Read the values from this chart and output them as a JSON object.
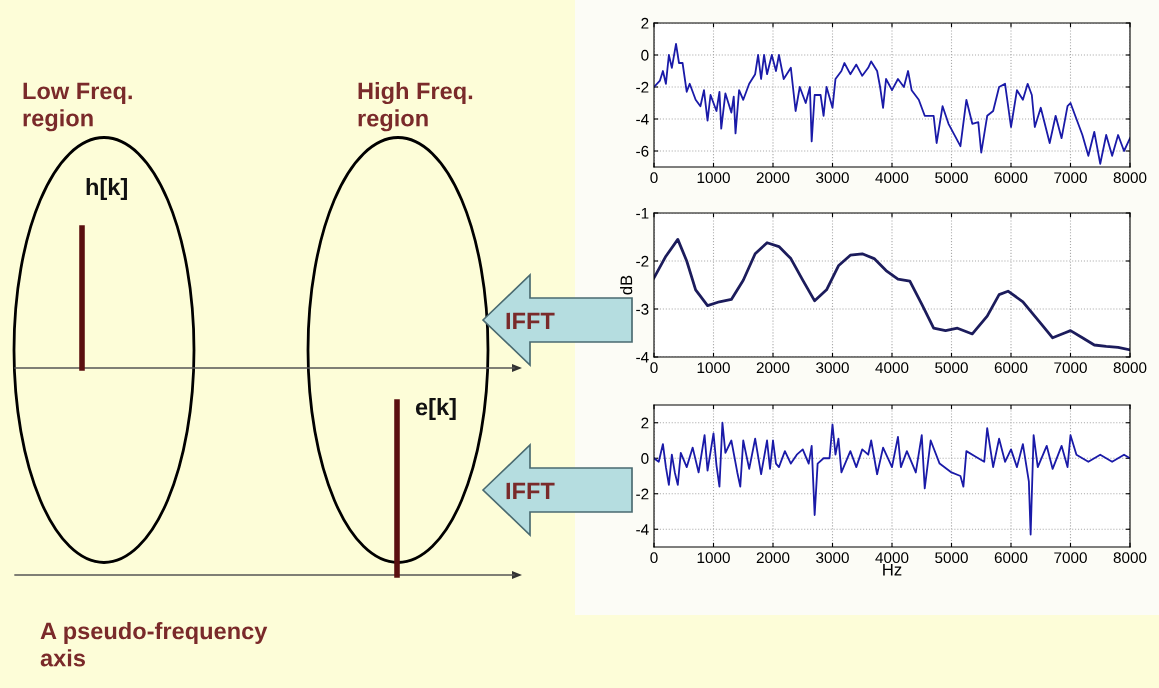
{
  "chart_data": [
    {
      "type": "other",
      "annotations": [
        "Low Freq.\nregion",
        "High Freq.\nregion",
        "h[k]",
        "e[k]",
        "IFFT",
        "IFFT",
        "A pseudo-frequency\naxis"
      ]
    },
    {
      "type": "line",
      "xlim": [
        0,
        8000
      ],
      "xticks": [
        0,
        1000,
        2000,
        3000,
        4000,
        5000,
        6000,
        7000,
        8000
      ],
      "ylim": [
        -7,
        2
      ],
      "yticks": [
        -6,
        -4,
        -2,
        0,
        2
      ],
      "grid": true,
      "line_style": "solid",
      "marker": "none",
      "series": [
        {
          "color": "#1a1aa8",
          "x": [
            0,
            100,
            150,
            200,
            250,
            300,
            370,
            420,
            480,
            550,
            600,
            700,
            780,
            840,
            900,
            950,
            1050,
            1100,
            1130,
            1200,
            1300,
            1340,
            1370,
            1430,
            1500,
            1600,
            1700,
            1750,
            1800,
            1850,
            1900,
            1980,
            2050,
            2100,
            2180,
            2300,
            2380,
            2450,
            2550,
            2620,
            2650,
            2700,
            2800,
            2850,
            2900,
            3000,
            3050,
            3150,
            3200,
            3300,
            3400,
            3500,
            3600,
            3650,
            3750,
            3800,
            3850,
            3900,
            4000,
            4100,
            4200,
            4270,
            4330,
            4450,
            4550,
            4700,
            4750,
            4850,
            4950,
            5150,
            5250,
            5350,
            5450,
            5500,
            5600,
            5700,
            5800,
            5900,
            6000,
            6100,
            6200,
            6280,
            6350,
            6400,
            6500,
            6650,
            6750,
            6850,
            6950,
            7000,
            7100,
            7200,
            7300,
            7400,
            7500,
            7600,
            7700,
            7800,
            7900,
            8000
          ],
          "values": [
            -2,
            -1.6,
            -1.0,
            -1.8,
            0,
            -0.8,
            0.7,
            -0.5,
            -0.5,
            -2.3,
            -1.8,
            -2.8,
            -3.2,
            -2.2,
            -4.1,
            -2.5,
            -3.5,
            -2.3,
            -4.6,
            -2.4,
            -3.6,
            -2.6,
            -4.9,
            -2.2,
            -2.8,
            -1.8,
            -1.2,
            0,
            -1.5,
            0,
            -1.2,
            0,
            -1.0,
            0,
            -1.5,
            -0.8,
            -3.5,
            -2.0,
            -3.0,
            -2.0,
            -5.4,
            -2.5,
            -2.5,
            -3.8,
            -2.0,
            -3.3,
            -1.5,
            -1.0,
            -0.5,
            -1.2,
            -0.6,
            -1.3,
            -0.8,
            -0.4,
            -1.0,
            -2.0,
            -3.3,
            -1.5,
            -2.2,
            -1.5,
            -2.0,
            -1.0,
            -2.2,
            -2.8,
            -3.8,
            -3.8,
            -5.5,
            -3.2,
            -4.3,
            -5.7,
            -2.8,
            -4.3,
            -4.2,
            -6.1,
            -3.8,
            -3.5,
            -2.0,
            -1.8,
            -4.5,
            -2.2,
            -2.8,
            -1.8,
            -2.5,
            -4.5,
            -3.3,
            -5.5,
            -3.8,
            -5.2,
            -3.2,
            -3.0,
            -4.0,
            -5.0,
            -6.3,
            -4.8,
            -6.8,
            -5.0,
            -6.3,
            -5.0,
            -6.0,
            -5.2
          ]
        }
      ]
    },
    {
      "type": "line",
      "ylabel": "dB",
      "xlim": [
        0,
        8000
      ],
      "xticks": [
        0,
        1000,
        2000,
        3000,
        4000,
        5000,
        6000,
        7000,
        8000
      ],
      "ylim": [
        -4,
        -1
      ],
      "yticks": [
        -1,
        -2,
        -3,
        -4
      ],
      "grid": true,
      "line_style": "solid",
      "marker": "none",
      "series": [
        {
          "color": "#1c1c5c",
          "x": [
            0,
            200,
            400,
            550,
            700,
            900,
            1100,
            1300,
            1500,
            1700,
            1900,
            2100,
            2300,
            2500,
            2700,
            2900,
            3100,
            3300,
            3500,
            3700,
            3900,
            4100,
            4300,
            4500,
            4700,
            4900,
            5100,
            5350,
            5600,
            5800,
            5950,
            6200,
            6500,
            6700,
            6900,
            7000,
            7200,
            7400,
            7600,
            7800,
            8000
          ],
          "values": [
            -2.35,
            -1.9,
            -1.55,
            -2.0,
            -2.6,
            -2.93,
            -2.85,
            -2.8,
            -2.4,
            -1.85,
            -1.62,
            -1.7,
            -1.95,
            -2.4,
            -2.83,
            -2.6,
            -2.1,
            -1.88,
            -1.85,
            -1.95,
            -2.2,
            -2.38,
            -2.42,
            -2.9,
            -3.4,
            -3.45,
            -3.4,
            -3.52,
            -3.15,
            -2.7,
            -2.63,
            -2.85,
            -3.3,
            -3.6,
            -3.5,
            -3.45,
            -3.6,
            -3.75,
            -3.78,
            -3.8,
            -3.85
          ]
        }
      ]
    },
    {
      "type": "line",
      "xlabel": "Hz",
      "xlim": [
        0,
        8000
      ],
      "xticks": [
        0,
        1000,
        2000,
        3000,
        4000,
        5000,
        6000,
        7000,
        8000
      ],
      "ylim": [
        -5,
        3
      ],
      "yticks": [
        -4,
        -2,
        0,
        2
      ],
      "grid": true,
      "line_style": "solid",
      "marker": "none",
      "series": [
        {
          "color": "#1a1aa8",
          "x": [
            0,
            80,
            150,
            200,
            250,
            300,
            350,
            400,
            450,
            550,
            650,
            750,
            850,
            900,
            1000,
            1050,
            1100,
            1150,
            1200,
            1300,
            1400,
            1450,
            1500,
            1600,
            1700,
            1800,
            1900,
            1950,
            2000,
            2050,
            2100,
            2200,
            2300,
            2400,
            2500,
            2600,
            2650,
            2700,
            2750,
            2850,
            2950,
            3000,
            3050,
            3100,
            3150,
            3300,
            3400,
            3500,
            3600,
            3650,
            3750,
            3850,
            4000,
            4100,
            4150,
            4250,
            4400,
            4500,
            4550,
            4650,
            4800,
            5000,
            5150,
            5200,
            5250,
            5400,
            5550,
            5600,
            5700,
            5800,
            5900,
            6000,
            6100,
            6200,
            6300,
            6330,
            6380,
            6450,
            6600,
            6700,
            6850,
            6950,
            7000,
            7100,
            7300,
            7500,
            7700,
            7900,
            8000
          ],
          "values": [
            0,
            -0.2,
            0.8,
            -0.5,
            -1.5,
            0.2,
            -0.8,
            -1.5,
            0.3,
            -0.5,
            0.6,
            -0.8,
            1.3,
            -0.7,
            1.4,
            -0.4,
            -1.6,
            2.0,
            0.3,
            1.0,
            -0.8,
            -1.6,
            1.0,
            -0.6,
            1.1,
            -0.9,
            1.0,
            -0.6,
            1.0,
            -0.3,
            -0.5,
            0.4,
            -0.3,
            0.2,
            0.5,
            -0.3,
            0.7,
            -3.2,
            -0.3,
            0,
            0,
            1.9,
            0.2,
            1.1,
            -0.8,
            0.4,
            -0.5,
            0.5,
            0.2,
            1.0,
            -0.9,
            0.6,
            -0.5,
            1.2,
            -0.5,
            0.4,
            -0.8,
            1.3,
            -1.7,
            1.0,
            -0.3,
            -0.8,
            -1.0,
            -1.6,
            0.4,
            0.1,
            -0.2,
            1.7,
            -0.5,
            1.1,
            -0.2,
            0.5,
            -0.5,
            0.8,
            -1.3,
            -4.3,
            1.3,
            -0.5,
            0.7,
            -0.6,
            0.7,
            -0.5,
            1.3,
            0.2,
            -0.2,
            0.2,
            -0.2,
            0.2,
            0
          ]
        }
      ]
    }
  ]
}
